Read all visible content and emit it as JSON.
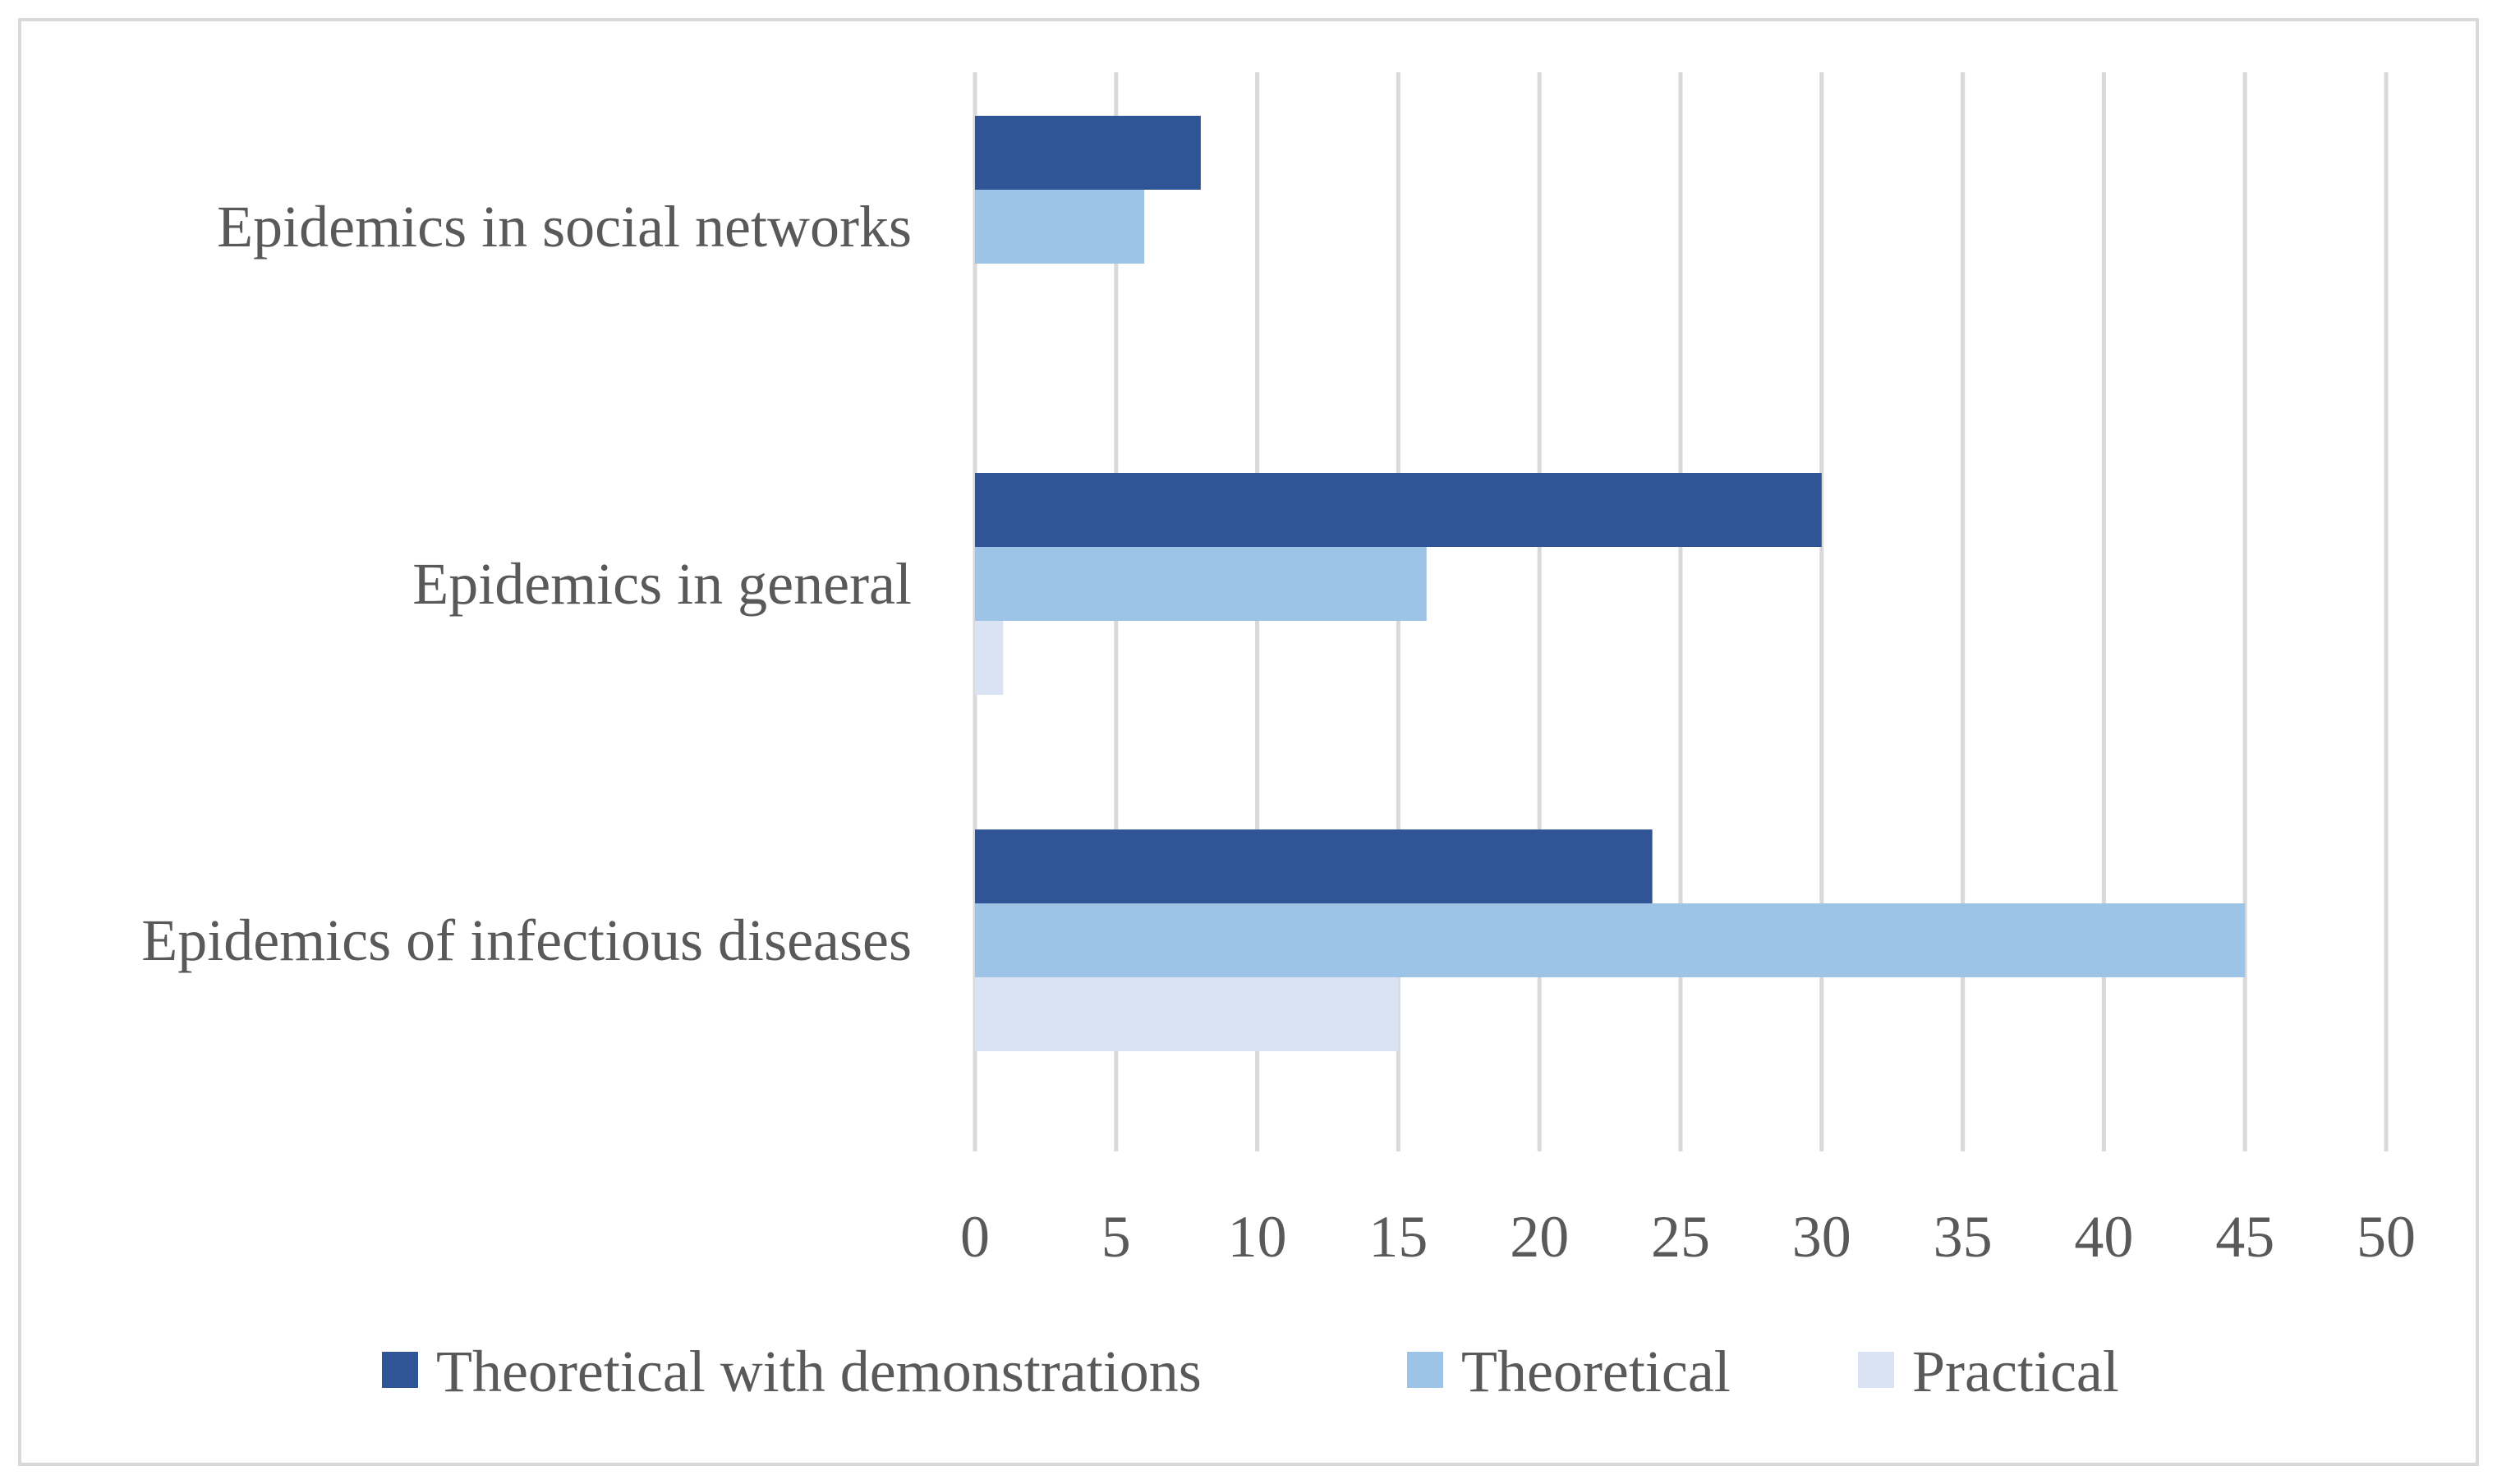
{
  "chart_data": {
    "type": "bar",
    "orientation": "horizontal",
    "title": "",
    "xlabel": "",
    "ylabel": "",
    "categories": [
      "Epidemics in social networks",
      "Epidemics in general",
      "Epidemics of infectious diseases"
    ],
    "series": [
      {
        "name": "Theoretical with demonstrations",
        "color": "#2f5597",
        "values": [
          8,
          30,
          24
        ]
      },
      {
        "name": "Theoretical",
        "color": "#9dc3e6",
        "values": [
          6,
          16,
          45
        ]
      },
      {
        "name": "Practical",
        "color": "#dae3f3",
        "values": [
          0,
          1,
          15
        ]
      }
    ],
    "xlim": [
      0,
      50
    ],
    "xticks": [
      "0",
      "5",
      "10",
      "15",
      "20",
      "25",
      "30",
      "35",
      "40",
      "45",
      "50"
    ],
    "grid": true,
    "legend_position": "bottom"
  }
}
